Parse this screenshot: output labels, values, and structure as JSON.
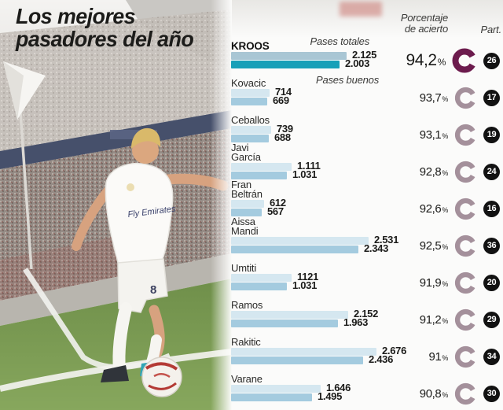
{
  "title": {
    "line1": "Los mejores",
    "line2": "pasadores del año"
  },
  "headers": {
    "totals_label": "Pases totales",
    "good_label": "Pases buenos",
    "accuracy_line1": "Porcentaje",
    "accuracy_line2": "de acierto",
    "participation": "Part.",
    "pct_symbol": "%"
  },
  "photo": {
    "description": "Toni Kroos in white Real Madrid kit striking a corner kick beside the corner flag",
    "jersey_text": "Fly Emirates",
    "shorts_number": "8"
  },
  "colors": {
    "bar_total": "#d5e7f0",
    "bar_good": "#a4cbdf",
    "bar_total_highlight": "#a9c6d4",
    "bar_good_highlight": "#18a0b8",
    "donut": "#a4909b",
    "donut_highlight": "#6c1b4d",
    "badge_bg": "#121212",
    "title_text": "#1c1c1a"
  },
  "chart_data": {
    "type": "bar",
    "orientation": "horizontal",
    "series": [
      {
        "name": "Pases totales"
      },
      {
        "name": "Pases buenos"
      }
    ],
    "value_scale_max": 2676,
    "players": [
      {
        "name": "KROOS",
        "name_lines": [
          "KROOS"
        ],
        "total": 2125,
        "total_display": "2.125",
        "good": 2003,
        "good_display": "2.003",
        "accuracy_pct": 94.2,
        "accuracy_display": "94,2",
        "appearances": 26,
        "highlight": true
      },
      {
        "name": "Kovacic",
        "name_lines": [
          "Kovacic"
        ],
        "total": 714,
        "total_display": "714",
        "good": 669,
        "good_display": "669",
        "accuracy_pct": 93.7,
        "accuracy_display": "93,7",
        "appearances": 17,
        "highlight": false
      },
      {
        "name": "Ceballos",
        "name_lines": [
          "Ceballos"
        ],
        "total": 739,
        "total_display": "739",
        "good": 688,
        "good_display": "688",
        "accuracy_pct": 93.1,
        "accuracy_display": "93,1",
        "appearances": 19,
        "highlight": false
      },
      {
        "name": "Javi García",
        "name_lines": [
          "Javi",
          "García"
        ],
        "total": 1111,
        "total_display": "1.111",
        "good": 1031,
        "good_display": "1.031",
        "accuracy_pct": 92.8,
        "accuracy_display": "92,8",
        "appearances": 24,
        "highlight": false
      },
      {
        "name": "Fran Beltrán",
        "name_lines": [
          "Fran",
          "Beltrán"
        ],
        "total": 612,
        "total_display": "612",
        "good": 567,
        "good_display": "567",
        "accuracy_pct": 92.6,
        "accuracy_display": "92,6",
        "appearances": 16,
        "highlight": false
      },
      {
        "name": "Aissa Mandi",
        "name_lines": [
          "Aissa",
          "Mandi"
        ],
        "total": 2531,
        "total_display": "2.531",
        "good": 2343,
        "good_display": "2.343",
        "accuracy_pct": 92.5,
        "accuracy_display": "92,5",
        "appearances": 36,
        "highlight": false
      },
      {
        "name": "Umtiti",
        "name_lines": [
          "Umtiti"
        ],
        "total": 1121,
        "total_display": "1121",
        "good": 1031,
        "good_display": "1.031",
        "accuracy_pct": 91.9,
        "accuracy_display": "91,9",
        "appearances": 20,
        "highlight": false
      },
      {
        "name": "Ramos",
        "name_lines": [
          "Ramos"
        ],
        "total": 2152,
        "total_display": "2.152",
        "good": 1963,
        "good_display": "1.963",
        "accuracy_pct": 91.2,
        "accuracy_display": "91,2",
        "appearances": 29,
        "highlight": false
      },
      {
        "name": "Rakitic",
        "name_lines": [
          "Rakitic"
        ],
        "total": 2676,
        "total_display": "2.676",
        "good": 2436,
        "good_display": "2.436",
        "accuracy_pct": 91.0,
        "accuracy_display": "91",
        "appearances": 34,
        "highlight": false
      },
      {
        "name": "Varane",
        "name_lines": [
          "Varane"
        ],
        "total": 1646,
        "total_display": "1.646",
        "good": 1495,
        "good_display": "1.495",
        "accuracy_pct": 90.8,
        "accuracy_display": "90,8",
        "appearances": 30,
        "highlight": false
      }
    ]
  }
}
